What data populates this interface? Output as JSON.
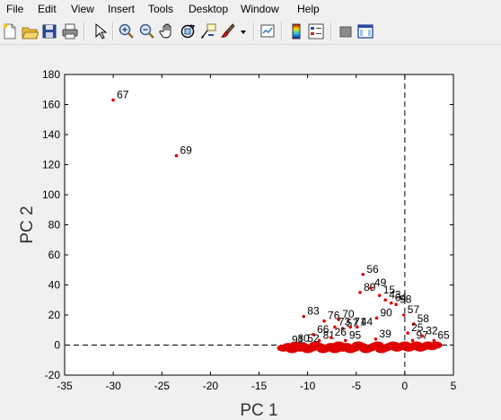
{
  "menu": {
    "items": [
      "File",
      "Edit",
      "View",
      "Insert",
      "Tools",
      "Desktop",
      "Window",
      "Help"
    ]
  },
  "toolbar": {
    "buttons": [
      "new-figure-icon",
      "open-file-icon",
      "save-icon",
      "print-icon",
      "edit-plot-arrow-icon",
      "zoom-in-icon",
      "zoom-out-icon",
      "pan-hand-icon",
      "rotate-3d-icon",
      "data-cursor-icon",
      "brush-icon",
      "brush-dropdown-icon",
      "link-plot-icon",
      "insert-colorbar-icon",
      "insert-legend-icon",
      "hide-plot-tools-icon",
      "show-plot-tools-icon"
    ]
  },
  "colors": {
    "figure_background": "#f0f0f0",
    "axes_background": "#ffffff",
    "marker": "#e00000",
    "dashed_line": "#000000"
  },
  "chart_data": {
    "type": "scatter",
    "title": "",
    "xlabel": "PC 1",
    "ylabel": "PC 2",
    "xlim": [
      -35,
      5
    ],
    "ylim": [
      -20,
      180
    ],
    "xticks": [
      -35,
      -30,
      -25,
      -20,
      -15,
      -10,
      -5,
      0,
      5
    ],
    "yticks": [
      -20,
      0,
      20,
      40,
      60,
      80,
      100,
      120,
      140,
      160,
      180
    ],
    "grid": false,
    "reference_lines": {
      "x": 0,
      "y": 0,
      "style": "dashed"
    },
    "marker_color": "#e00000",
    "points": [
      {
        "x": -30.0,
        "y": 163,
        "label": "67"
      },
      {
        "x": -23.5,
        "y": 126,
        "label": "69"
      },
      {
        "x": -4.3,
        "y": 47,
        "label": "56"
      },
      {
        "x": -4.6,
        "y": 35,
        "label": "89"
      },
      {
        "x": -3.5,
        "y": 38,
        "label": "49"
      },
      {
        "x": -2.6,
        "y": 33,
        "label": "15"
      },
      {
        "x": -2.0,
        "y": 30,
        "label": "43"
      },
      {
        "x": -1.4,
        "y": 28,
        "label": "64"
      },
      {
        "x": -0.9,
        "y": 27,
        "label": "98"
      },
      {
        "x": -10.4,
        "y": 19,
        "label": "83"
      },
      {
        "x": -2.9,
        "y": 18,
        "label": "90"
      },
      {
        "x": -0.1,
        "y": 20,
        "label": "57"
      },
      {
        "x": -8.3,
        "y": 16,
        "label": "76"
      },
      {
        "x": -6.8,
        "y": 17,
        "label": "70"
      },
      {
        "x": -7.2,
        "y": 12,
        "label": "73"
      },
      {
        "x": -6.4,
        "y": 11,
        "label": "57"
      },
      {
        "x": -5.6,
        "y": 12,
        "label": "71"
      },
      {
        "x": -4.9,
        "y": 12,
        "label": "44"
      },
      {
        "x": -9.4,
        "y": 7,
        "label": "66"
      },
      {
        "x": -8.8,
        "y": 3,
        "label": "81"
      },
      {
        "x": -7.6,
        "y": 5,
        "label": "26"
      },
      {
        "x": -6.1,
        "y": 3,
        "label": "95"
      },
      {
        "x": -3.0,
        "y": 4,
        "label": "39"
      },
      {
        "x": 0.9,
        "y": 14,
        "label": "58"
      },
      {
        "x": 0.3,
        "y": 8,
        "label": "25"
      },
      {
        "x": 0.8,
        "y": 3,
        "label": "97"
      },
      {
        "x": 1.8,
        "y": 6,
        "label": "32"
      },
      {
        "x": 3.0,
        "y": 3,
        "label": "65"
      },
      {
        "x": -12.0,
        "y": 0,
        "label": "91"
      },
      {
        "x": -11.4,
        "y": 1,
        "label": "80"
      },
      {
        "x": -10.4,
        "y": 1,
        "label": "52"
      }
    ],
    "cluster_x": [
      -12.5,
      -12.0,
      -11.6,
      -11.2,
      -10.8,
      -10.4,
      -10.0,
      -9.6,
      -9.2,
      -8.8,
      -8.4,
      -8.0,
      -7.6,
      -7.2,
      -6.8,
      -6.4,
      -6.0,
      -5.6,
      -5.2,
      -4.8,
      -4.4,
      -4.0,
      -3.6,
      -3.2,
      -2.8,
      -2.4,
      -2.0,
      -1.6,
      -1.2,
      -0.8,
      -0.4,
      0.0,
      0.4,
      0.8,
      1.2,
      1.6,
      2.0,
      2.4,
      2.8,
      3.2
    ],
    "cluster_y": [
      -2,
      -1,
      -3,
      0,
      -2,
      -1,
      -3,
      -2,
      0,
      -1,
      -3,
      -2,
      -1,
      -3,
      0,
      -2,
      -1,
      -3,
      -2,
      0,
      -1,
      -3,
      -2,
      -1,
      0,
      -3,
      -2,
      -1,
      0,
      -2,
      -1,
      0,
      -2,
      -1,
      0,
      -2,
      -1,
      0,
      -1,
      0
    ]
  }
}
